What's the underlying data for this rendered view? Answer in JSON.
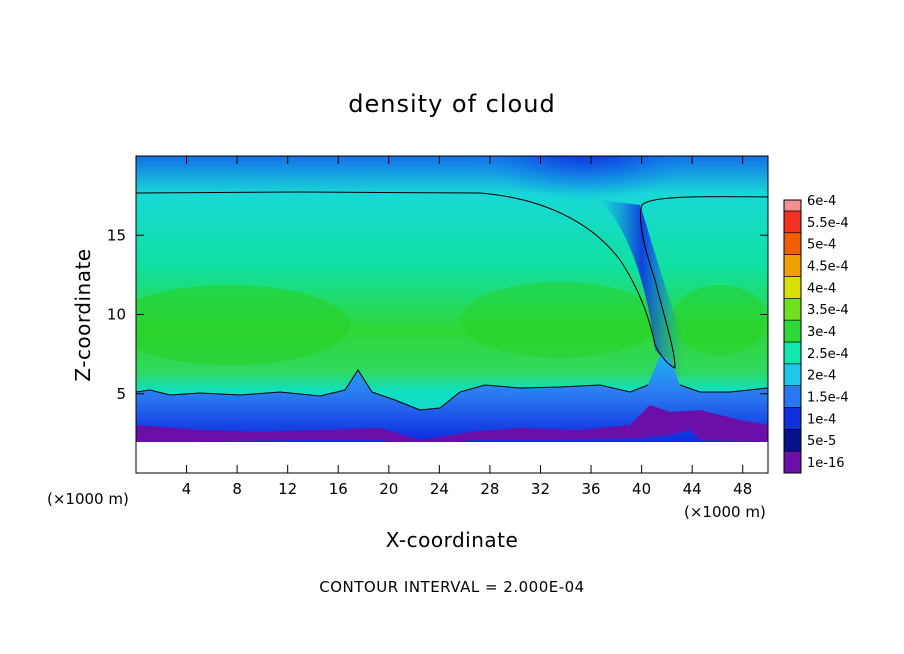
{
  "chart_data": {
    "type": "heatmap",
    "title": "density of cloud",
    "xlabel": "X-coordinate",
    "ylabel": "Z-coordinate",
    "x_unit": "(×1000 m)",
    "x_unit_right": "(×1000 m)",
    "xlim": [
      0,
      50
    ],
    "ylim": [
      0,
      20
    ],
    "x_ticks": [
      4,
      8,
      12,
      16,
      20,
      24,
      28,
      32,
      36,
      40,
      44,
      48
    ],
    "y_ticks": [
      5,
      10,
      15
    ],
    "colorbar": {
      "levels": [
        "1e-16",
        "5e-5",
        "1e-4",
        "1.5e-4",
        "2e-4",
        "2.5e-4",
        "3e-4",
        "3.5e-4",
        "4e-4",
        "4.5e-4",
        "5e-4",
        "5.5e-4",
        "6e-4"
      ],
      "colors": [
        "#6a0fa8",
        "#0a0f8c",
        "#1030e0",
        "#2a78f0",
        "#20c8e8",
        "#10e8b0",
        "#30d838",
        "#70e020",
        "#d8e000",
        "#f0a000",
        "#f06000",
        "#f03020",
        "#f49090"
      ]
    },
    "contour_level": "2.000E-04",
    "footer": "CONTOUR INTERVAL = 2.000E-04"
  }
}
